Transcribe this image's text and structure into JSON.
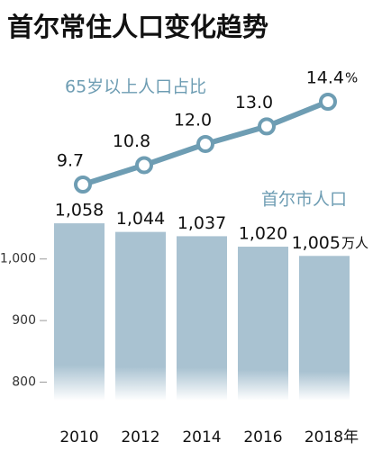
{
  "title": "首尔常住人口变化趋势",
  "chart_data": [
    {
      "type": "line",
      "name": "65岁以上人口占比",
      "values": [
        9.7,
        10.8,
        12.0,
        13.0,
        14.4
      ],
      "value_labels": [
        "9.7",
        "10.8",
        "12.0",
        "13.0",
        "14.4"
      ],
      "unit": "%",
      "color": "#6e9db3"
    },
    {
      "type": "bar",
      "name": "首尔市人口",
      "categories": [
        "2010",
        "2012",
        "2014",
        "2016",
        "2018年"
      ],
      "values": [
        1058,
        1044,
        1037,
        1020,
        1005
      ],
      "value_labels": [
        "1,058",
        "1,044",
        "1,037",
        "1,020",
        "1,005"
      ],
      "unit": "万人",
      "color": "#a9c2d1",
      "ylim": [
        770,
        1080
      ],
      "yticks": [
        800,
        900,
        {
          "value": 1000,
          "label": "1,000"
        }
      ]
    }
  ]
}
